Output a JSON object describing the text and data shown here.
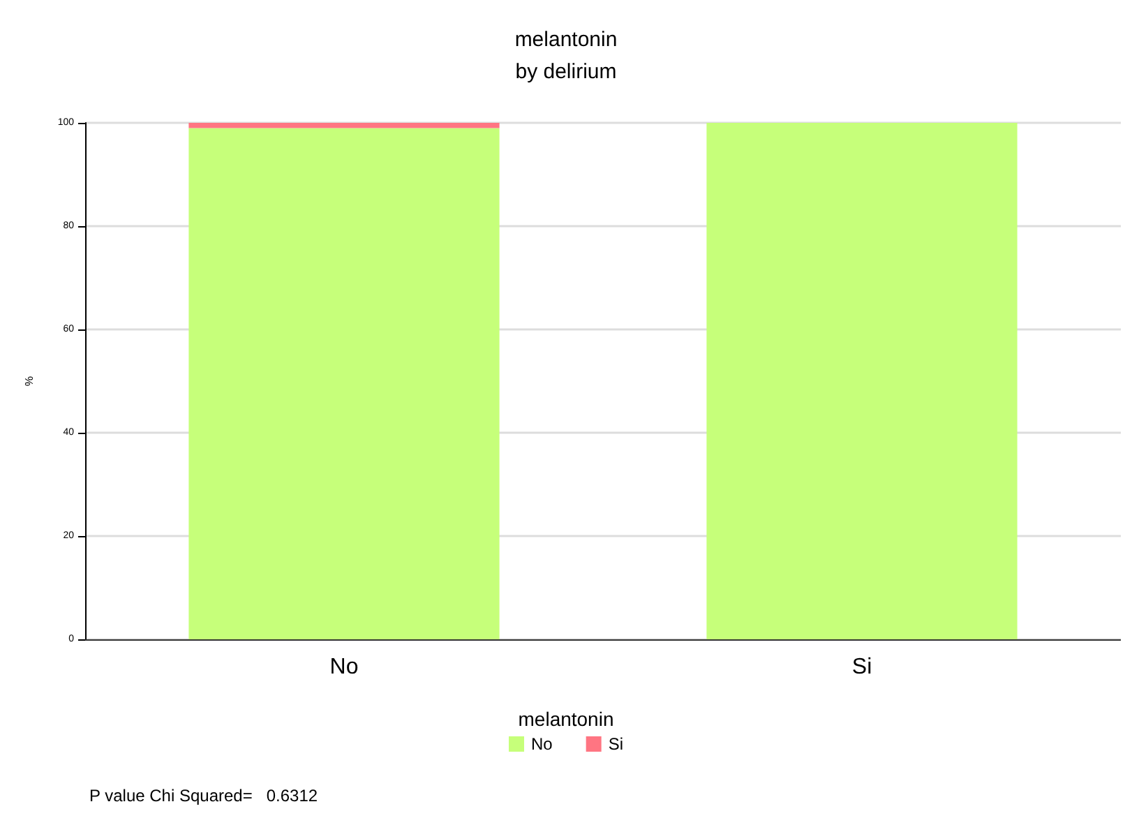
{
  "chart_data": {
    "type": "bar",
    "title": "melantonin",
    "subtitle": "by delirium",
    "ylabel": "%",
    "legend_title": "melantonin",
    "categories": [
      "No",
      "Si"
    ],
    "stacked": true,
    "series": [
      {
        "name": "No",
        "color": "#c6ff7a",
        "values": [
          99,
          100
        ]
      },
      {
        "name": "Si",
        "color": "#ff7582",
        "values": [
          1,
          0
        ]
      }
    ],
    "ylim": [
      0,
      100
    ],
    "yticks": [
      0,
      20,
      40,
      60,
      80,
      100
    ],
    "grid": "y",
    "legend": "bottom",
    "annotations": [
      "P value Chi Squared=   0.6312"
    ]
  }
}
